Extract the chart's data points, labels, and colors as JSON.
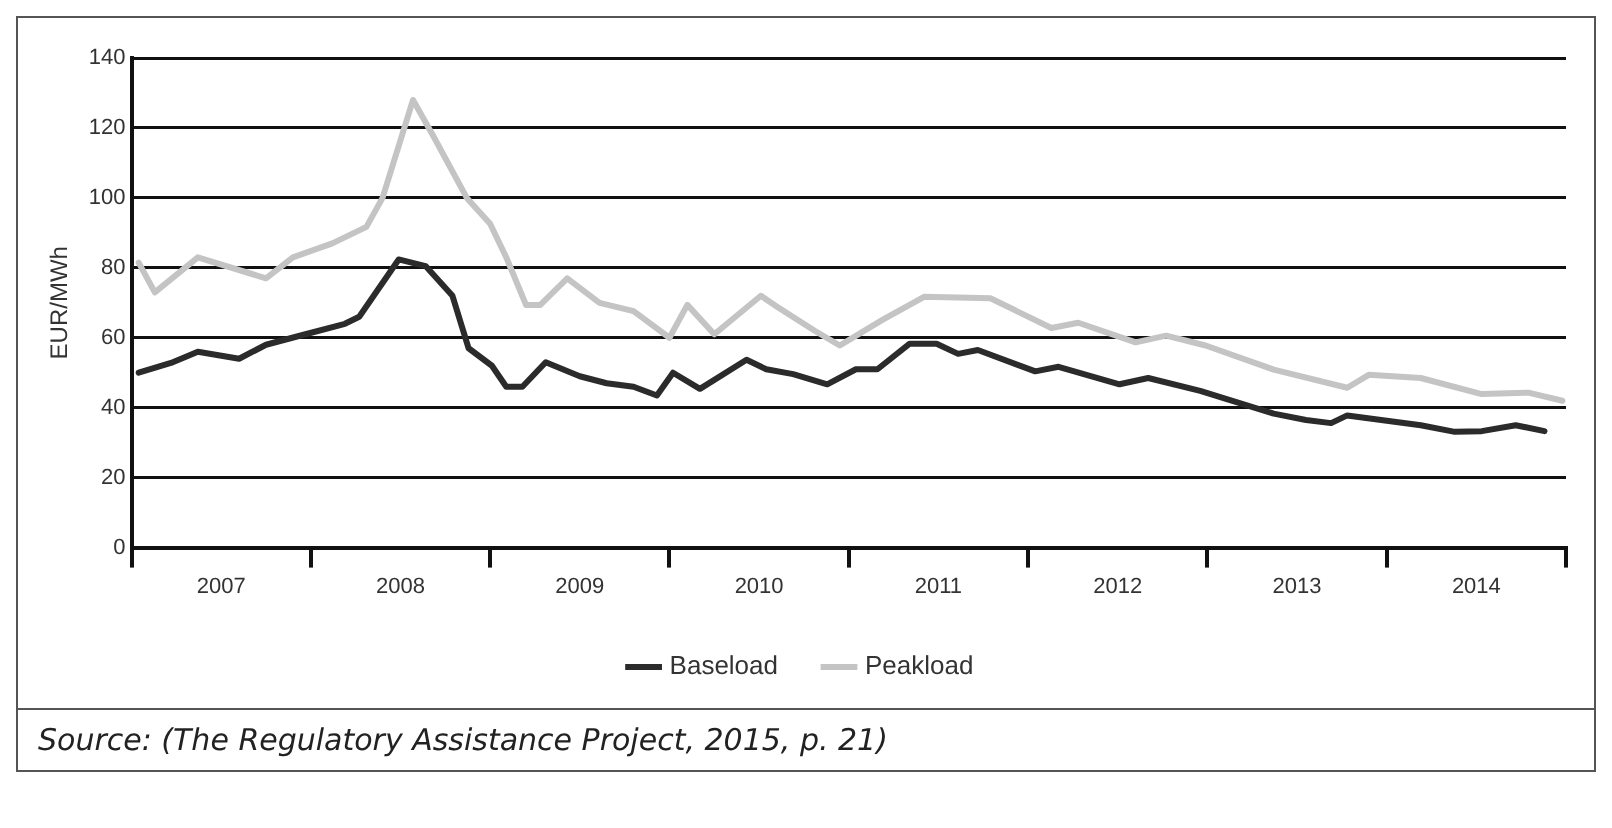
{
  "chart_data": {
    "type": "line",
    "ylabel": "EUR/MWh",
    "xlim": [
      2007,
      2015
    ],
    "ylim": [
      0,
      140
    ],
    "xticks": [
      {
        "value": 2007,
        "label": null
      },
      {
        "value": 2007.5,
        "label": "2007"
      },
      {
        "value": 2008,
        "label": null
      },
      {
        "value": 2008.5,
        "label": "2008"
      },
      {
        "value": 2009,
        "label": null
      },
      {
        "value": 2009.5,
        "label": "2009"
      },
      {
        "value": 2010,
        "label": null
      },
      {
        "value": 2010.5,
        "label": "2010"
      },
      {
        "value": 2011,
        "label": null
      },
      {
        "value": 2011.5,
        "label": "2011"
      },
      {
        "value": 2012,
        "label": null
      },
      {
        "value": 2012.5,
        "label": "2012"
      },
      {
        "value": 2013,
        "label": null
      },
      {
        "value": 2013.5,
        "label": "2013"
      },
      {
        "value": 2014,
        "label": null
      },
      {
        "value": 2014.5,
        "label": "2014"
      },
      {
        "value": 2015,
        "label": null
      }
    ],
    "yticks": [
      0,
      20,
      40,
      60,
      80,
      100,
      120,
      140
    ],
    "grid": "y",
    "legend": "bottom",
    "marker": "none",
    "series": [
      {
        "name": "Baseload",
        "color": "#2b2b2b",
        "x": [
          2007.04,
          2007.22,
          2007.37,
          2007.6,
          2007.75,
          2007.97,
          2008.19,
          2008.27,
          2008.49,
          2008.64,
          2008.79,
          2008.88,
          2009.01,
          2009.09,
          2009.18,
          2009.31,
          2009.5,
          2009.65,
          2009.8,
          2009.93,
          2010.02,
          2010.17,
          2010.43,
          2010.54,
          2010.69,
          2010.88,
          2011.04,
          2011.16,
          2011.34,
          2011.49,
          2011.61,
          2011.72,
          2012.04,
          2012.17,
          2012.51,
          2012.67,
          2012.96,
          2013.37,
          2013.55,
          2013.69,
          2013.78,
          2014.19,
          2014.38,
          2014.53,
          2014.72,
          2014.88
        ],
        "values": [
          50,
          52.8,
          56,
          54,
          58,
          61,
          64,
          66,
          82.4,
          80.5,
          72,
          57,
          52,
          46,
          46,
          53,
          49,
          47,
          46,
          43.5,
          50,
          45.4,
          53.7,
          51,
          49.6,
          46.7,
          51,
          51,
          58.3,
          58.3,
          55.4,
          56.5,
          50.4,
          51.7,
          46.7,
          48.5,
          44.8,
          38.3,
          36.5,
          35.6,
          37.8,
          35,
          33.1,
          33.3,
          35,
          33.3
        ]
      },
      {
        "name": "Peakload",
        "color": "#c4c4c4",
        "x": [
          2007.04,
          2007.13,
          2007.37,
          2007.75,
          2007.9,
          2008.12,
          2008.31,
          2008.4,
          2008.57,
          2008.68,
          2008.87,
          2009.0,
          2009.09,
          2009.2,
          2009.28,
          2009.43,
          2009.61,
          2009.8,
          2010.0,
          2010.1,
          2010.25,
          2010.51,
          2010.6,
          2010.81,
          2010.95,
          2011.19,
          2011.42,
          2011.79,
          2012.13,
          2012.28,
          2012.6,
          2012.77,
          2012.99,
          2013.37,
          2013.78,
          2013.9,
          2014.19,
          2014.53,
          2014.79,
          2014.98
        ],
        "values": [
          81.5,
          73,
          83,
          77,
          83,
          87,
          91.7,
          100,
          128,
          118,
          100,
          92.6,
          83,
          69.4,
          69.4,
          77,
          70,
          67.6,
          60,
          69.4,
          61,
          72,
          68.9,
          62,
          57.8,
          65.2,
          71.7,
          71.3,
          62.8,
          64.3,
          58.7,
          60.6,
          57.8,
          50.9,
          45.7,
          49.4,
          48.5,
          43.9,
          44.3,
          42
        ]
      }
    ],
    "annotations": [
      "Source: (The Regulatory Assistance Project, 2015, p. 21)"
    ]
  }
}
